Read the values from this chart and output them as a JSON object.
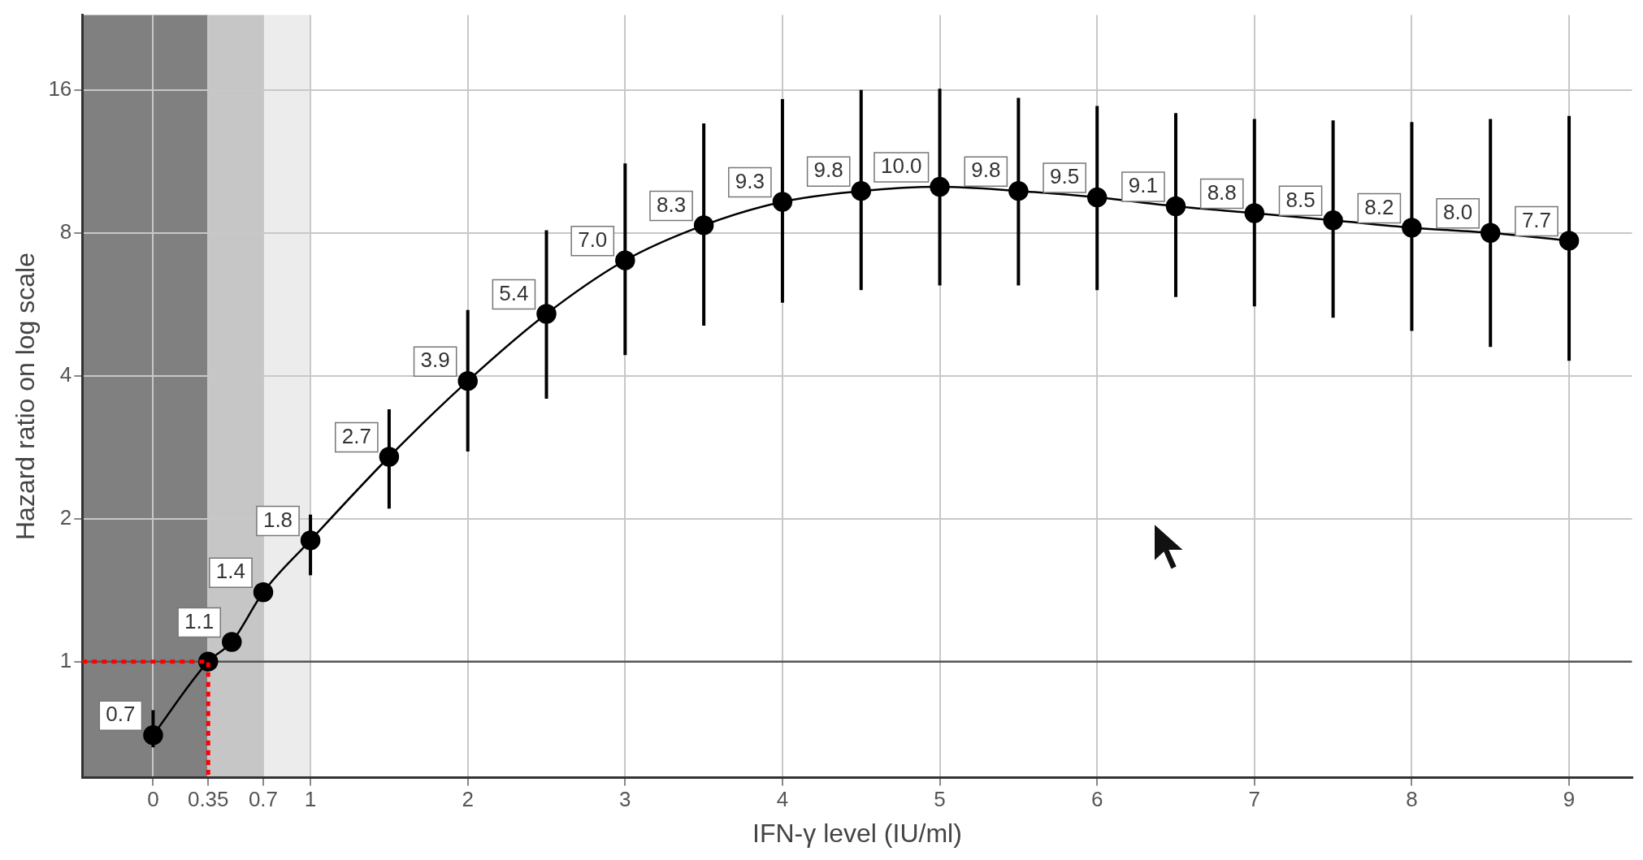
{
  "chart_data": {
    "type": "line",
    "xlabel": "IFN-γ level (IU/ml)",
    "ylabel": "Hazard ratio on log scale",
    "log": "y",
    "grid": true,
    "legend": false,
    "xlim": [
      -0.45,
      9.4
    ],
    "xticks": [
      0,
      0.35,
      0.7,
      1,
      2,
      3,
      4,
      5,
      6,
      7,
      8,
      9
    ],
    "ylim": [
      0.57,
      23
    ],
    "yticks": [
      1,
      2,
      4,
      8,
      16
    ],
    "bands": [
      {
        "axis": "x",
        "from": -0.45,
        "to": 0.35,
        "color": "#808080"
      },
      {
        "axis": "x",
        "from": 0.35,
        "to": 0.7,
        "color": "#c6c6c6"
      },
      {
        "axis": "x",
        "from": 0.7,
        "to": 1,
        "color": "#ececec"
      }
    ],
    "ref_lines": [
      {
        "axis": "y",
        "value": 1,
        "color": "#555555",
        "line_style": "solid"
      }
    ],
    "series": [
      {
        "color": "#000000",
        "marker": "circle",
        "line_style": "solid",
        "x": [
          0,
          0.35,
          0.5,
          0.7,
          1,
          1.5,
          2,
          2.5,
          3,
          3.5,
          4,
          4.5,
          5,
          5.5,
          6,
          6.5,
          7,
          7.5,
          8,
          8.5,
          9
        ],
        "values": [
          0.7,
          1,
          1.1,
          1.4,
          1.8,
          2.7,
          3.9,
          5.4,
          7.0,
          8.3,
          9.3,
          9.8,
          10.0,
          9.8,
          9.5,
          9.1,
          8.8,
          8.5,
          8.2,
          8.0,
          7.7
        ],
        "value_labels": [
          "0.7",
          null,
          "1.1",
          "1.4",
          "1.8",
          "2.7",
          "3.9",
          "5.4",
          "7.0",
          "8.3",
          "9.3",
          "9.8",
          "10.0",
          "9.8",
          "9.5",
          "9.1",
          "8.8",
          "8.5",
          "8.2",
          "8.0",
          "7.7"
        ],
        "errors": [
          [
            0.66,
            0.79
          ],
          null,
          null,
          [
            1.35,
            1.46
          ],
          [
            1.52,
            2.04
          ],
          [
            2.1,
            3.4
          ],
          [
            2.77,
            5.5
          ],
          [
            3.58,
            8.1
          ],
          [
            4.42,
            11.2
          ],
          [
            5.1,
            13.6
          ],
          [
            5.7,
            15.3
          ],
          [
            6.06,
            16
          ],
          [
            6.2,
            16.1
          ],
          [
            6.2,
            15.4
          ],
          [
            6.06,
            14.8
          ],
          [
            5.86,
            14.3
          ],
          [
            5.6,
            13.9
          ],
          [
            5.3,
            13.8
          ],
          [
            4.97,
            13.7
          ],
          [
            4.6,
            13.9
          ],
          [
            4.3,
            14.1
          ]
        ]
      },
      {
        "color": "#ff0000",
        "marker": "none",
        "line_style": "dotted",
        "x": [
          -0.45,
          0.35,
          0.35
        ],
        "values": [
          1,
          1,
          0.57
        ]
      }
    ]
  }
}
